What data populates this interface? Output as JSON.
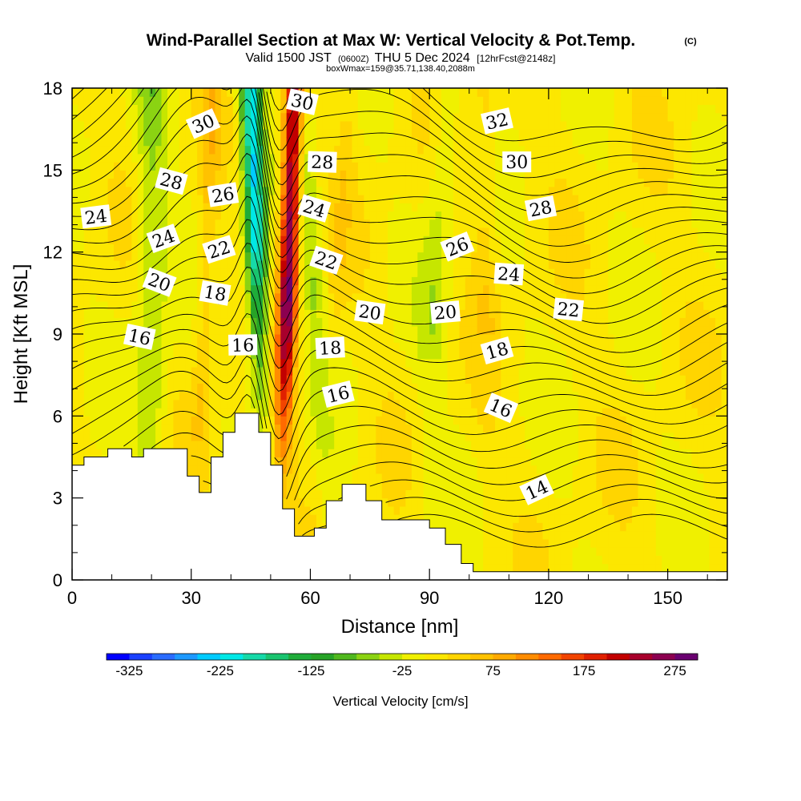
{
  "chart_data": {
    "type": "heatmap",
    "title": "Wind-Parallel Section at Max W: Vertical Velocity & Pot.Temp.",
    "title_mark": "(C)",
    "subtitle": {
      "valid": "Valid 1500 JST",
      "utc": "(0600Z)",
      "date": "THU 5 Dec 2024",
      "fcst": "[12hrFcst@2148z]"
    },
    "box_info": "boxWmax=159@35.71,138.40,2088m",
    "xlabel": "Distance [nm]",
    "ylabel": "Height [Kft MSL]",
    "xlim": [
      0,
      165
    ],
    "ylim": [
      0,
      18
    ],
    "x_ticks": [
      "0",
      "30",
      "60",
      "90",
      "120",
      "150"
    ],
    "y_ticks": [
      "0",
      "3",
      "6",
      "9",
      "12",
      "15",
      "18"
    ],
    "grid": false,
    "colorbar": {
      "label": "Vertical Velocity [cm/s]",
      "ticks": [
        "-325",
        "-225",
        "-125",
        "-25",
        "75",
        "175",
        "275"
      ],
      "range": [
        -350,
        300
      ],
      "colors": [
        "#0000ff",
        "#1a40ff",
        "#2a6cff",
        "#1d99ff",
        "#00cbff",
        "#00e8e6",
        "#16d9a8",
        "#19c46f",
        "#1fac3a",
        "#27a327",
        "#50b81e",
        "#8bd312",
        "#c6e600",
        "#f0f000",
        "#fce700",
        "#ffd500",
        "#ffc200",
        "#ffaa00",
        "#ff8c00",
        "#ff6a00",
        "#f24400",
        "#e02000",
        "#c20000",
        "#a8002c",
        "#8c0050",
        "#6a0070"
      ]
    },
    "terrain": [
      [
        0,
        4.2
      ],
      [
        3,
        4.5
      ],
      [
        9,
        4.8
      ],
      [
        15,
        4.5
      ],
      [
        18,
        4.8
      ],
      [
        26,
        4.8
      ],
      [
        29,
        3.8
      ],
      [
        32,
        3.2
      ],
      [
        35,
        4.5
      ],
      [
        38,
        5.4
      ],
      [
        41,
        6.1
      ],
      [
        47,
        5.4
      ],
      [
        50,
        4.2
      ],
      [
        53,
        2.6
      ],
      [
        56,
        1.6
      ],
      [
        61,
        1.9
      ],
      [
        64,
        2.9
      ],
      [
        68,
        3.5
      ],
      [
        74,
        2.9
      ],
      [
        78,
        2.2
      ],
      [
        84,
        2.2
      ],
      [
        90,
        1.9
      ],
      [
        94,
        1.3
      ],
      [
        98,
        0.6
      ],
      [
        101,
        0.3
      ],
      [
        165,
        0.3
      ]
    ],
    "updraft_cores": [
      {
        "x_base": 52,
        "x_top": 56,
        "w": 275
      },
      {
        "x_base": 62,
        "x_top": 70,
        "w": 25
      }
    ],
    "downdraft_cores": [
      {
        "x_base": 49,
        "x_top": 45,
        "w": -225
      }
    ],
    "series": [
      {
        "name": "14",
        "label_at": [
          117,
          3.3
        ]
      },
      {
        "name": "16",
        "label_at": [
          17,
          8.9
        ]
      },
      {
        "name": "16",
        "label_at": [
          43,
          8.6
        ]
      },
      {
        "name": "16",
        "label_at": [
          67,
          6.8
        ]
      },
      {
        "name": "16",
        "label_at": [
          108,
          6.3
        ]
      },
      {
        "name": "18",
        "label_at": [
          36,
          10.5
        ]
      },
      {
        "name": "18",
        "label_at": [
          65,
          8.5
        ]
      },
      {
        "name": "18",
        "label_at": [
          107,
          8.4
        ]
      },
      {
        "name": "20",
        "label_at": [
          22,
          10.9
        ]
      },
      {
        "name": "20",
        "label_at": [
          75,
          9.8
        ]
      },
      {
        "name": "20",
        "label_at": [
          94,
          9.8
        ]
      },
      {
        "name": "22",
        "label_at": [
          37,
          12.1
        ]
      },
      {
        "name": "22",
        "label_at": [
          64,
          11.7
        ]
      },
      {
        "name": "22",
        "label_at": [
          125,
          9.9
        ]
      },
      {
        "name": "24",
        "label_at": [
          6,
          13.3
        ]
      },
      {
        "name": "24",
        "label_at": [
          23,
          12.5
        ]
      },
      {
        "name": "24",
        "label_at": [
          61,
          13.6
        ]
      },
      {
        "name": "24",
        "label_at": [
          110,
          11.2
        ]
      },
      {
        "name": "26",
        "label_at": [
          38,
          14.1
        ]
      },
      {
        "name": "26",
        "label_at": [
          97,
          12.2
        ]
      },
      {
        "name": "28",
        "label_at": [
          25,
          14.6
        ]
      },
      {
        "name": "28",
        "label_at": [
          63,
          15.3
        ]
      },
      {
        "name": "28",
        "label_at": [
          118,
          13.6
        ]
      },
      {
        "name": "30",
        "label_at": [
          33,
          16.7
        ]
      },
      {
        "name": "30",
        "label_at": [
          58,
          17.5
        ]
      },
      {
        "name": "30",
        "label_at": [
          112,
          15.3
        ]
      },
      {
        "name": "32",
        "label_at": [
          107,
          16.8
        ]
      }
    ]
  }
}
